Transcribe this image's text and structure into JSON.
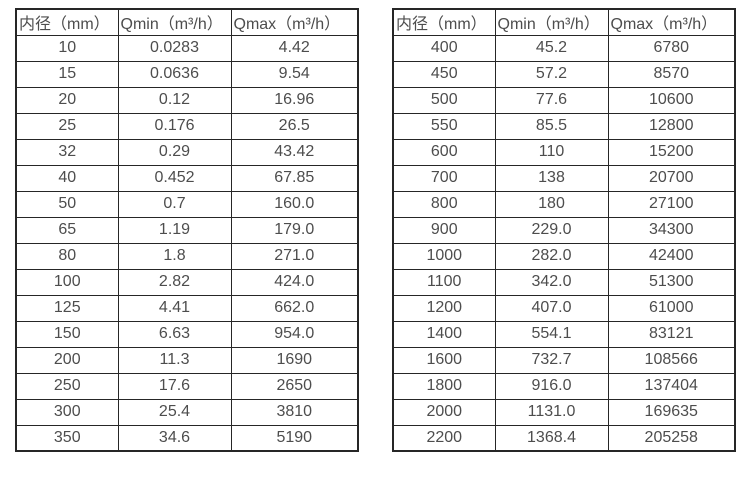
{
  "page": {
    "background_color": "#ffffff",
    "text_color": "#4d4d4d",
    "border_color": "#262626"
  },
  "chart_data": [
    {
      "type": "table",
      "title": "",
      "headers": [
        "内径（mm）",
        "Qmin（m³/h）",
        "Qmax（m³/h）"
      ],
      "rows": [
        [
          "10",
          "0.0283",
          "4.42"
        ],
        [
          "15",
          "0.0636",
          "9.54"
        ],
        [
          "20",
          "0.12",
          "16.96"
        ],
        [
          "25",
          "0.176",
          "26.5"
        ],
        [
          "32",
          "0.29",
          "43.42"
        ],
        [
          "40",
          "0.452",
          "67.85"
        ],
        [
          "50",
          "0.7",
          "160.0"
        ],
        [
          "65",
          "1.19",
          "179.0"
        ],
        [
          "80",
          "1.8",
          "271.0"
        ],
        [
          "100",
          "2.82",
          "424.0"
        ],
        [
          "125",
          "4.41",
          "662.0"
        ],
        [
          "150",
          "6.63",
          "954.0"
        ],
        [
          "200",
          "11.3",
          "1690"
        ],
        [
          "250",
          "17.6",
          "2650"
        ],
        [
          "300",
          "25.4",
          "3810"
        ],
        [
          "350",
          "34.6",
          "5190"
        ]
      ]
    },
    {
      "type": "table",
      "title": "",
      "headers": [
        "内径（mm）",
        "Qmin（m³/h）",
        "Qmax（m³/h）"
      ],
      "rows": [
        [
          "400",
          "45.2",
          "6780"
        ],
        [
          "450",
          "57.2",
          "8570"
        ],
        [
          "500",
          "77.6",
          "10600"
        ],
        [
          "550",
          "85.5",
          "12800"
        ],
        [
          "600",
          "110",
          "15200"
        ],
        [
          "700",
          "138",
          "20700"
        ],
        [
          "800",
          "180",
          "27100"
        ],
        [
          "900",
          "229.0",
          "34300"
        ],
        [
          "1000",
          "282.0",
          "42400"
        ],
        [
          "1100",
          "342.0",
          "51300"
        ],
        [
          "1200",
          "407.0",
          "61000"
        ],
        [
          "1400",
          "554.1",
          "83121"
        ],
        [
          "1600",
          "732.7",
          "108566"
        ],
        [
          "1800",
          "916.0",
          "137404"
        ],
        [
          "2000",
          "1131.0",
          "169635"
        ],
        [
          "2200",
          "1368.4",
          "205258"
        ]
      ]
    }
  ]
}
